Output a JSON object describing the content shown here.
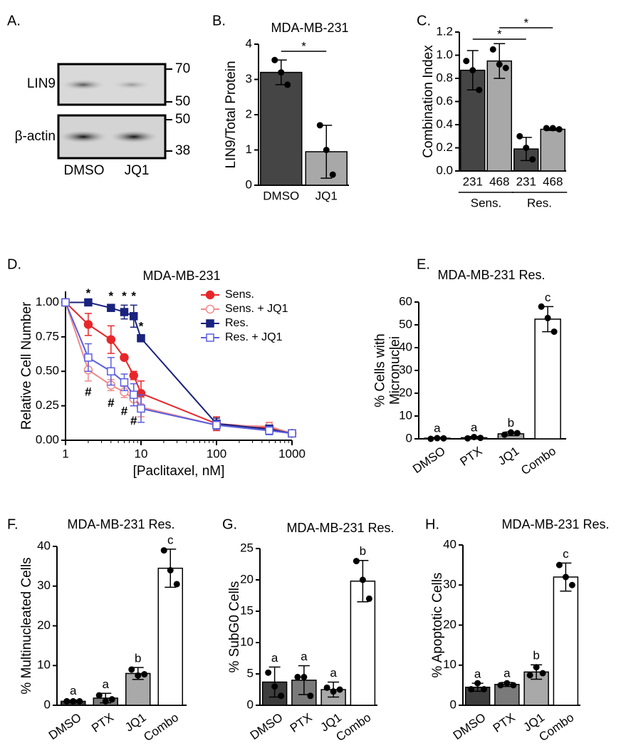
{
  "blot": {
    "panel_label": "A.",
    "rows": [
      {
        "label": "LIN9",
        "markers": [
          70,
          50
        ]
      },
      {
        "label": "β-actin",
        "markers": [
          50,
          38
        ]
      }
    ],
    "lanes": [
      "DMSO",
      "JQ1"
    ]
  },
  "chart_data": [
    {
      "type": "bar",
      "panel_label": "B.",
      "title": "MDA-MB-231",
      "ylabel": [
        "LIN9/Total Protein"
      ],
      "categories": [
        "DMSO",
        "JQ1"
      ],
      "values": [
        3.2,
        0.95
      ],
      "errors": [
        0.35,
        0.75
      ],
      "points": [
        [
          3.55,
          3.2,
          2.85
        ],
        [
          1.7,
          1.0,
          0.3
        ]
      ],
      "colors": [
        "#454545",
        "#a8a8a8"
      ],
      "ylim": [
        0,
        4
      ],
      "yticks": [
        0,
        1,
        2,
        3,
        4
      ],
      "brackets": [
        {
          "text": "*",
          "from": 0,
          "to": 1
        }
      ]
    },
    {
      "type": "bar",
      "panel_label": "C.",
      "ylabel": [
        "Combination Index"
      ],
      "categories": [
        "231",
        "468",
        "231",
        "468"
      ],
      "groups": [
        "Sens.",
        "Res."
      ],
      "values": [
        0.87,
        0.95,
        0.19,
        0.36
      ],
      "errors": [
        0.17,
        0.15,
        0.1,
        0.01
      ],
      "points": [
        [
          0.95,
          0.87,
          0.7
        ],
        [
          1.05,
          0.92,
          0.89
        ],
        [
          0.3,
          0.2,
          0.1
        ],
        [
          0.37,
          0.37,
          0.36
        ]
      ],
      "colors": [
        "#454545",
        "#a8a8a8",
        "#454545",
        "#a8a8a8"
      ],
      "ylim": [
        0,
        1.2
      ],
      "yticks": [
        {
          "value": 0,
          "label": "0.0"
        },
        {
          "value": 0.2,
          "label": "0.2"
        },
        {
          "value": 0.4,
          "label": "0.4"
        },
        {
          "value": 0.6,
          "label": "0.6"
        },
        {
          "value": 0.8,
          "label": "0.8"
        },
        {
          "value": 1,
          "label": "1.0"
        },
        {
          "value": 1.2,
          "label": "1.2"
        }
      ],
      "brackets": [
        {
          "text": "*",
          "from": 0,
          "to": 2
        },
        {
          "text": "*",
          "from": 1,
          "to": 3
        }
      ]
    },
    {
      "type": "line",
      "panel_label": "D.",
      "title": "MDA-MB-231",
      "xlabel": "[Paclitaxel, nM]",
      "ylabel": [
        "Relative Cell Number"
      ],
      "x": [
        1,
        2,
        4,
        6,
        8,
        10,
        100,
        500,
        1000
      ],
      "xscale": "log",
      "xlim": [
        1,
        1000
      ],
      "xticks": [
        1,
        10,
        100,
        1000
      ],
      "ylim": [
        0,
        1.08
      ],
      "yticks": [
        {
          "value": 0,
          "label": "0.00"
        },
        {
          "value": 0.25,
          "label": "0.25"
        },
        {
          "value": 0.5,
          "label": "0.50"
        },
        {
          "value": 0.75,
          "label": "0.75"
        },
        {
          "value": 1,
          "label": "1.00"
        }
      ],
      "legend": "upper right",
      "series": [
        {
          "name": "Sens.",
          "color": "#e8262a",
          "marker": "circle",
          "filled": true,
          "values": [
            1.0,
            0.84,
            0.73,
            0.6,
            0.47,
            0.34,
            0.12,
            0.09,
            0.05
          ],
          "errors": [
            0,
            0.08,
            0.1,
            0,
            0.03,
            0.09,
            0.05,
            0.04,
            0.02
          ]
        },
        {
          "name": "Sens. + JQ1",
          "color": "#f08a8a",
          "marker": "circle",
          "filled": false,
          "values": [
            1.0,
            0.51,
            0.4,
            0.35,
            0.3,
            0.24,
            0.11,
            0.1,
            0.05
          ],
          "errors": [
            0,
            0.08,
            0.04,
            0.04,
            0.05,
            0.07,
            0.03,
            0.03,
            0.02
          ],
          "annotations": [
            null,
            "#",
            "#",
            "#",
            "#",
            null,
            null,
            null,
            null
          ]
        },
        {
          "name": "Res.",
          "color": "#1a237e",
          "marker": "square",
          "filled": true,
          "values": [
            1.0,
            1.0,
            0.96,
            0.93,
            0.9,
            0.74,
            0.12,
            0.08,
            0.05
          ],
          "errors": [
            0,
            0,
            0.02,
            0.05,
            0.08,
            0.02,
            0.04,
            0.03,
            0.02
          ],
          "annotations": [
            null,
            "*",
            "*",
            "*",
            "*",
            "*",
            null,
            null,
            null
          ]
        },
        {
          "name": "Res. + JQ1",
          "color": "#5a5ee0",
          "marker": "square",
          "filled": false,
          "values": [
            1.0,
            0.6,
            0.5,
            0.42,
            0.33,
            0.23,
            0.11,
            0.07,
            0.05
          ],
          "errors": [
            0,
            0.1,
            0.1,
            0.06,
            0.08,
            0.1,
            0.03,
            0.03,
            0.02
          ]
        }
      ]
    },
    {
      "type": "bar",
      "panel_label": "E.",
      "title": "MDA-MB-231 Res.",
      "ylabel": [
        "% Cells with",
        "Micronuclei"
      ],
      "categories": [
        "DMSO",
        "PTX",
        "JQ1",
        "Combo"
      ],
      "values": [
        0.3,
        0.5,
        2.2,
        52.5
      ],
      "errors": [
        0.3,
        0.5,
        0.8,
        5.5
      ],
      "points": [
        [
          0,
          0.3,
          0.2
        ],
        [
          0.2,
          0.8,
          0.4
        ],
        [
          1.8,
          2.8,
          2.5
        ],
        [
          58,
          53,
          47
        ]
      ],
      "colors": [
        "#3d3d3d",
        "#7a7a7a",
        "#a9a9a9",
        "#ffffff"
      ],
      "annotations": [
        "a",
        "a",
        "b",
        "c"
      ],
      "ylim": [
        0,
        60
      ],
      "yticks": [
        0,
        10,
        20,
        30,
        40,
        50,
        60
      ]
    },
    {
      "type": "bar",
      "panel_label": "F.",
      "title": "MDA-MB-231 Res.",
      "ylabel": [
        "% Multinucleated Cells"
      ],
      "categories": [
        "DMSO",
        "PTX",
        "JQ1",
        "Combo"
      ],
      "values": [
        1.0,
        1.8,
        8.0,
        34.5
      ],
      "errors": [
        0.3,
        1.2,
        1.5,
        4.8
      ],
      "points": [
        [
          1,
          1,
          1
        ],
        [
          2.5,
          1,
          1.5
        ],
        [
          9,
          7.5,
          7.8
        ],
        [
          39,
          34,
          30.5
        ]
      ],
      "colors": [
        "#3d3d3d",
        "#7a7a7a",
        "#a9a9a9",
        "#ffffff"
      ],
      "annotations": [
        "a",
        "a",
        "b",
        "c"
      ],
      "ylim": [
        0,
        40
      ],
      "yticks": [
        0,
        10,
        20,
        30,
        40
      ]
    },
    {
      "type": "bar",
      "panel_label": "G.",
      "title": "MDA-MB-231 Res.",
      "ylabel": [
        "% SubG0 Cells"
      ],
      "categories": [
        "DMSO",
        "PTX",
        "JQ1",
        "Combo"
      ],
      "values": [
        3.7,
        4.0,
        2.5,
        19.8
      ],
      "errors": [
        2.4,
        2.3,
        1.2,
        3.3
      ],
      "points": [
        [
          5.2,
          3.0,
          1.5
        ],
        [
          4.5,
          4.5,
          1.5
        ],
        [
          2.8,
          2.2,
          2.5
        ],
        [
          23,
          20,
          17
        ]
      ],
      "colors": [
        "#3d3d3d",
        "#7a7a7a",
        "#a9a9a9",
        "#ffffff"
      ],
      "annotations": [
        "a",
        "a",
        "a",
        "b"
      ],
      "ylim": [
        0,
        25
      ],
      "yticks": [
        0,
        5,
        10,
        15,
        20,
        25
      ]
    },
    {
      "type": "bar",
      "panel_label": "H.",
      "title": "MDA-MB-231 Res.",
      "ylabel": [
        "% Apoptotic Cells"
      ],
      "categories": [
        "DMSO",
        "PTX",
        "JQ1",
        "Combo"
      ],
      "values": [
        4.5,
        5.2,
        8.3,
        32
      ],
      "errors": [
        1,
        0.5,
        1.8,
        3.5
      ],
      "points": [
        [
          4,
          5.5,
          4
        ],
        [
          5,
          5.5,
          5
        ],
        [
          7.5,
          9.5,
          8
        ],
        [
          35,
          32,
          30
        ]
      ],
      "colors": [
        "#3d3d3d",
        "#7a7a7a",
        "#a9a9a9",
        "#ffffff"
      ],
      "annotations": [
        "a",
        "a",
        "b",
        "c"
      ],
      "ylim": [
        0,
        40
      ],
      "yticks": [
        0,
        10,
        20,
        30,
        40
      ]
    }
  ]
}
